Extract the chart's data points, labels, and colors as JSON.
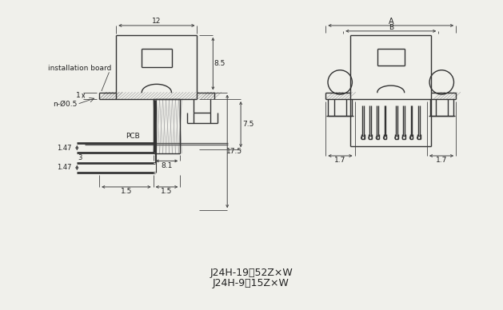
{
  "bg_color": "#f0f0eb",
  "line_color": "#333333",
  "dim_color": "#444444",
  "text_color": "#222222",
  "title_line1": "J24H-19～52Z×W",
  "title_line2": "J24H-9、15Z×W",
  "label_install": "installation board",
  "label_pcb": "PCB",
  "label_n_phi": "n-Ø0.5",
  "dim_12": "12",
  "dim_8p5": "8.5",
  "dim_17p5": "17.5",
  "dim_7p5": "7.5",
  "dim_1": "1",
  "dim_1p47a": "1.47",
  "dim_3": "3",
  "dim_1p47b": "1.47",
  "dim_8p1": "8.1",
  "dim_1p5a": "1.5",
  "dim_1p5b": "1.5",
  "dim_A": "A",
  "dim_B": "B",
  "dim_1p7a": "1.7",
  "dim_1p7b": "1.7"
}
